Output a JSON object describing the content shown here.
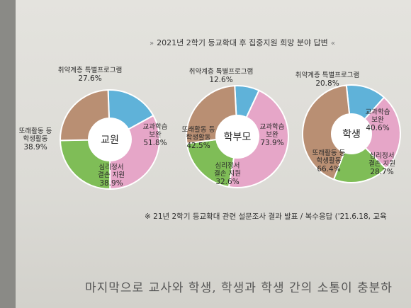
{
  "page": {
    "title": "2021년 2학기 등교확대 후 집중지원 희망 분야 답변",
    "title_left_mark": "»",
    "title_right_mark": "«",
    "footnote": "※ 21년 2학기 등교확대 관련 설문조사 결과 발표 / 복수응답 ('21.6.18, 교육",
    "body_text": "마지막으로 교사와 학생, 학생과 학생 간의 소통이 충분하"
  },
  "colors": {
    "취약계층": "#5fb2d9",
    "교과학습": "#e6a6c8",
    "심리정서": "#7fbd57",
    "또래활동": "#b98f73",
    "center": "#ffffff"
  },
  "chart_data": [
    {
      "type": "pie",
      "center_label": "교원",
      "slices": [
        {
          "label": "취약계층 특별프로그램",
          "lines": [
            "취약계층 특별프로그램"
          ],
          "value": 27.6,
          "value_text": "27.6%",
          "color_key": "취약계층"
        },
        {
          "label": "교과학습 보완",
          "lines": [
            "교과학습",
            "보완"
          ],
          "value": 51.8,
          "value_text": "51.8%",
          "color_key": "교과학습"
        },
        {
          "label": "심리정서 결손 지원",
          "lines": [
            "심리정서",
            "결손 지원"
          ],
          "value": 38.9,
          "value_text": "38.9%",
          "color_key": "심리정서"
        },
        {
          "label": "또래활동 등 학생활동",
          "lines": [
            "또래활동 등",
            "학생활동"
          ],
          "value": 38.9,
          "value_text": "38.9%",
          "color_key": "또래활동"
        }
      ]
    },
    {
      "type": "pie",
      "center_label": "학부모",
      "slices": [
        {
          "label": "취약계층 특별프로그램",
          "lines": [
            "취약계층 특별프로그램"
          ],
          "value": 12.6,
          "value_text": "12.6%",
          "color_key": "취약계층"
        },
        {
          "label": "교과학습 보완",
          "lines": [
            "교과학습",
            "보완"
          ],
          "value": 73.9,
          "value_text": "73.9%",
          "color_key": "교과학습"
        },
        {
          "label": "심리정서 결손 지원",
          "lines": [
            "심리정서",
            "결손 지원"
          ],
          "value": 32.6,
          "value_text": "32.6%",
          "color_key": "심리정서"
        },
        {
          "label": "또래활동 등 학생활동",
          "lines": [
            "또래활동 등",
            "학생활동"
          ],
          "value": 42.5,
          "value_text": "42.5%",
          "color_key": "또래활동"
        }
      ]
    },
    {
      "type": "pie",
      "center_label": "학생",
      "slices": [
        {
          "label": "취약계층 특별프로그램",
          "lines": [
            "취약계층 특별프로그램"
          ],
          "value": 20.8,
          "value_text": "20.8%",
          "color_key": "취약계층"
        },
        {
          "label": "교과학습 보완",
          "lines": [
            "교과학습",
            "보완"
          ],
          "value": 40.6,
          "value_text": "40.6%",
          "color_key": "교과학습"
        },
        {
          "label": "심리정서 결손 지원",
          "lines": [
            "심리정서",
            "결손 지원"
          ],
          "value": 28.7,
          "value_text": "28.7%",
          "color_key": "심리정서"
        },
        {
          "label": "또래활동 등 학생활동",
          "lines": [
            "또래활동 등",
            "학생활동"
          ],
          "value": 66.4,
          "value_text": "66.4%",
          "color_key": "또래활동"
        }
      ]
    }
  ]
}
